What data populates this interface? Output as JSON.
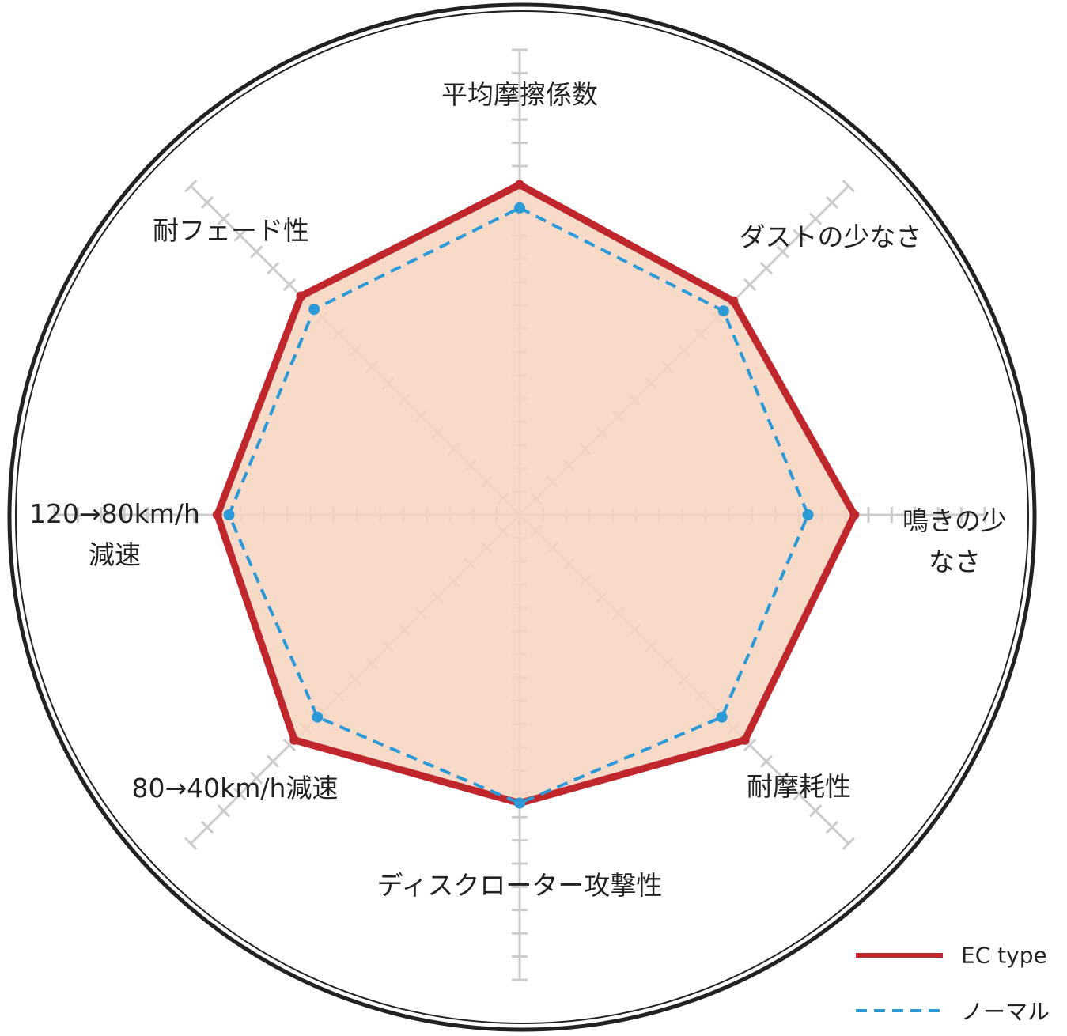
{
  "chart_data": {
    "type": "radar",
    "categories": [
      "平均摩擦係数",
      "ダストの少なさ",
      "鳴きの少なさ",
      "耐摩耗性",
      "ディスクローター攻撃性",
      "80→40km/h減速",
      "120→80km/h\n減速",
      "耐フェード性"
    ],
    "series": [
      {
        "name": "EC type",
        "color": "#c0272d",
        "values": [
          14.2,
          13.0,
          14.4,
          13.7,
          12.4,
          13.7,
          13.0,
          13.3
        ]
      },
      {
        "name": "ノーマル",
        "color": "#2d9ad8",
        "values": [
          13.2,
          12.4,
          12.4,
          12.3,
          12.4,
          12.3,
          12.5,
          12.5
        ]
      }
    ],
    "rlim": [
      0,
      20
    ],
    "rticks": [
      1,
      2,
      3,
      4,
      5,
      6,
      7,
      8,
      9,
      10,
      11,
      12,
      13,
      14,
      15,
      16,
      17,
      18,
      19,
      20
    ],
    "fill": "#f7d4c0"
  }
}
